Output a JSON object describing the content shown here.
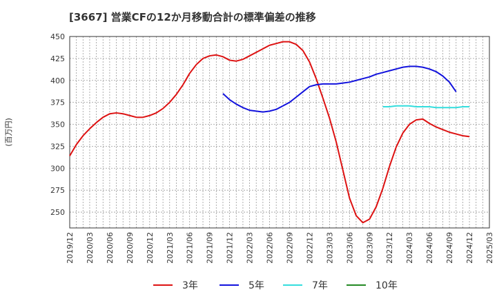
{
  "chart_data": {
    "type": "line",
    "title": "[3667]  営業CFの12か月移動合計の標準偏差の推移",
    "ylabel": "(百万円)",
    "ylim": [
      232,
      450
    ],
    "yticks": [
      250,
      275,
      300,
      325,
      350,
      375,
      400,
      425,
      450
    ],
    "grid": true,
    "legend_position": "bottom",
    "x": [
      "2019/12",
      "2020/01",
      "2020/02",
      "2020/03",
      "2020/04",
      "2020/05",
      "2020/06",
      "2020/07",
      "2020/08",
      "2020/09",
      "2020/10",
      "2020/11",
      "2020/12",
      "2021/01",
      "2021/02",
      "2021/03",
      "2021/04",
      "2021/05",
      "2021/06",
      "2021/07",
      "2021/08",
      "2021/09",
      "2021/10",
      "2021/11",
      "2021/12",
      "2022/01",
      "2022/02",
      "2022/03",
      "2022/04",
      "2022/05",
      "2022/06",
      "2022/07",
      "2022/08",
      "2022/09",
      "2022/10",
      "2022/11",
      "2022/12",
      "2023/01",
      "2023/02",
      "2023/03",
      "2023/04",
      "2023/05",
      "2023/06",
      "2023/07",
      "2023/08",
      "2023/09",
      "2023/10",
      "2023/11",
      "2023/12",
      "2024/01",
      "2024/02",
      "2024/03",
      "2024/04",
      "2024/05",
      "2024/06",
      "2024/07",
      "2024/08",
      "2024/09",
      "2024/10",
      "2024/11",
      "2024/12",
      "2025/01",
      "2025/02",
      "2025/03"
    ],
    "xtick_labels": [
      "2019/12",
      "2020/03",
      "2020/06",
      "2020/09",
      "2020/12",
      "2021/03",
      "2021/06",
      "2021/09",
      "2021/12",
      "2022/03",
      "2022/06",
      "2022/09",
      "2022/12",
      "2023/03",
      "2023/06",
      "2023/09",
      "2023/12",
      "2024/03",
      "2024/06",
      "2024/09",
      "2024/12",
      "2025/03"
    ],
    "series": [
      {
        "name": "3年",
        "color": "#dd1111",
        "values": [
          314,
          327,
          337,
          345,
          352,
          358,
          362,
          363,
          362,
          360,
          358,
          358,
          360,
          363,
          368,
          375,
          384,
          395,
          408,
          418,
          425,
          428,
          429,
          427,
          423,
          422,
          424,
          428,
          432,
          436,
          440,
          442,
          444,
          444,
          441,
          434,
          421,
          402,
          380,
          357,
          330,
          298,
          266,
          246,
          238,
          242,
          256,
          277,
          302,
          324,
          340,
          350,
          355,
          356,
          351,
          347,
          344,
          341,
          339,
          337,
          336,
          null,
          null,
          null
        ]
      },
      {
        "name": "5年",
        "color": "#1111dd",
        "values": [
          null,
          null,
          null,
          null,
          null,
          null,
          null,
          null,
          null,
          null,
          null,
          null,
          null,
          null,
          null,
          null,
          null,
          null,
          null,
          null,
          null,
          null,
          null,
          385,
          378,
          373,
          369,
          366,
          365,
          364,
          365,
          367,
          371,
          375,
          381,
          387,
          393,
          395,
          396,
          396,
          396,
          397,
          398,
          400,
          402,
          404,
          407,
          409,
          411,
          413,
          415,
          416,
          416,
          415,
          413,
          410,
          405,
          398,
          387,
          null,
          null,
          null,
          null,
          null
        ]
      },
      {
        "name": "7年",
        "color": "#33dddd",
        "values": [
          null,
          null,
          null,
          null,
          null,
          null,
          null,
          null,
          null,
          null,
          null,
          null,
          null,
          null,
          null,
          null,
          null,
          null,
          null,
          null,
          null,
          null,
          null,
          null,
          null,
          null,
          null,
          null,
          null,
          null,
          null,
          null,
          null,
          null,
          null,
          null,
          null,
          null,
          null,
          null,
          null,
          null,
          null,
          null,
          null,
          null,
          null,
          370,
          370,
          371,
          371,
          371,
          370,
          370,
          370,
          369,
          369,
          369,
          369,
          370,
          370,
          null,
          null,
          null
        ]
      },
      {
        "name": "10年",
        "color": "#228822",
        "values": [
          null,
          null,
          null,
          null,
          null,
          null,
          null,
          null,
          null,
          null,
          null,
          null,
          null,
          null,
          null,
          null,
          null,
          null,
          null,
          null,
          null,
          null,
          null,
          null,
          null,
          null,
          null,
          null,
          null,
          null,
          null,
          null,
          null,
          null,
          null,
          null,
          null,
          null,
          null,
          null,
          null,
          null,
          null,
          null,
          null,
          null,
          null,
          null,
          null,
          null,
          null,
          null,
          null,
          null,
          null,
          null,
          null,
          null,
          null,
          null,
          null,
          null,
          null,
          null
        ]
      }
    ]
  }
}
